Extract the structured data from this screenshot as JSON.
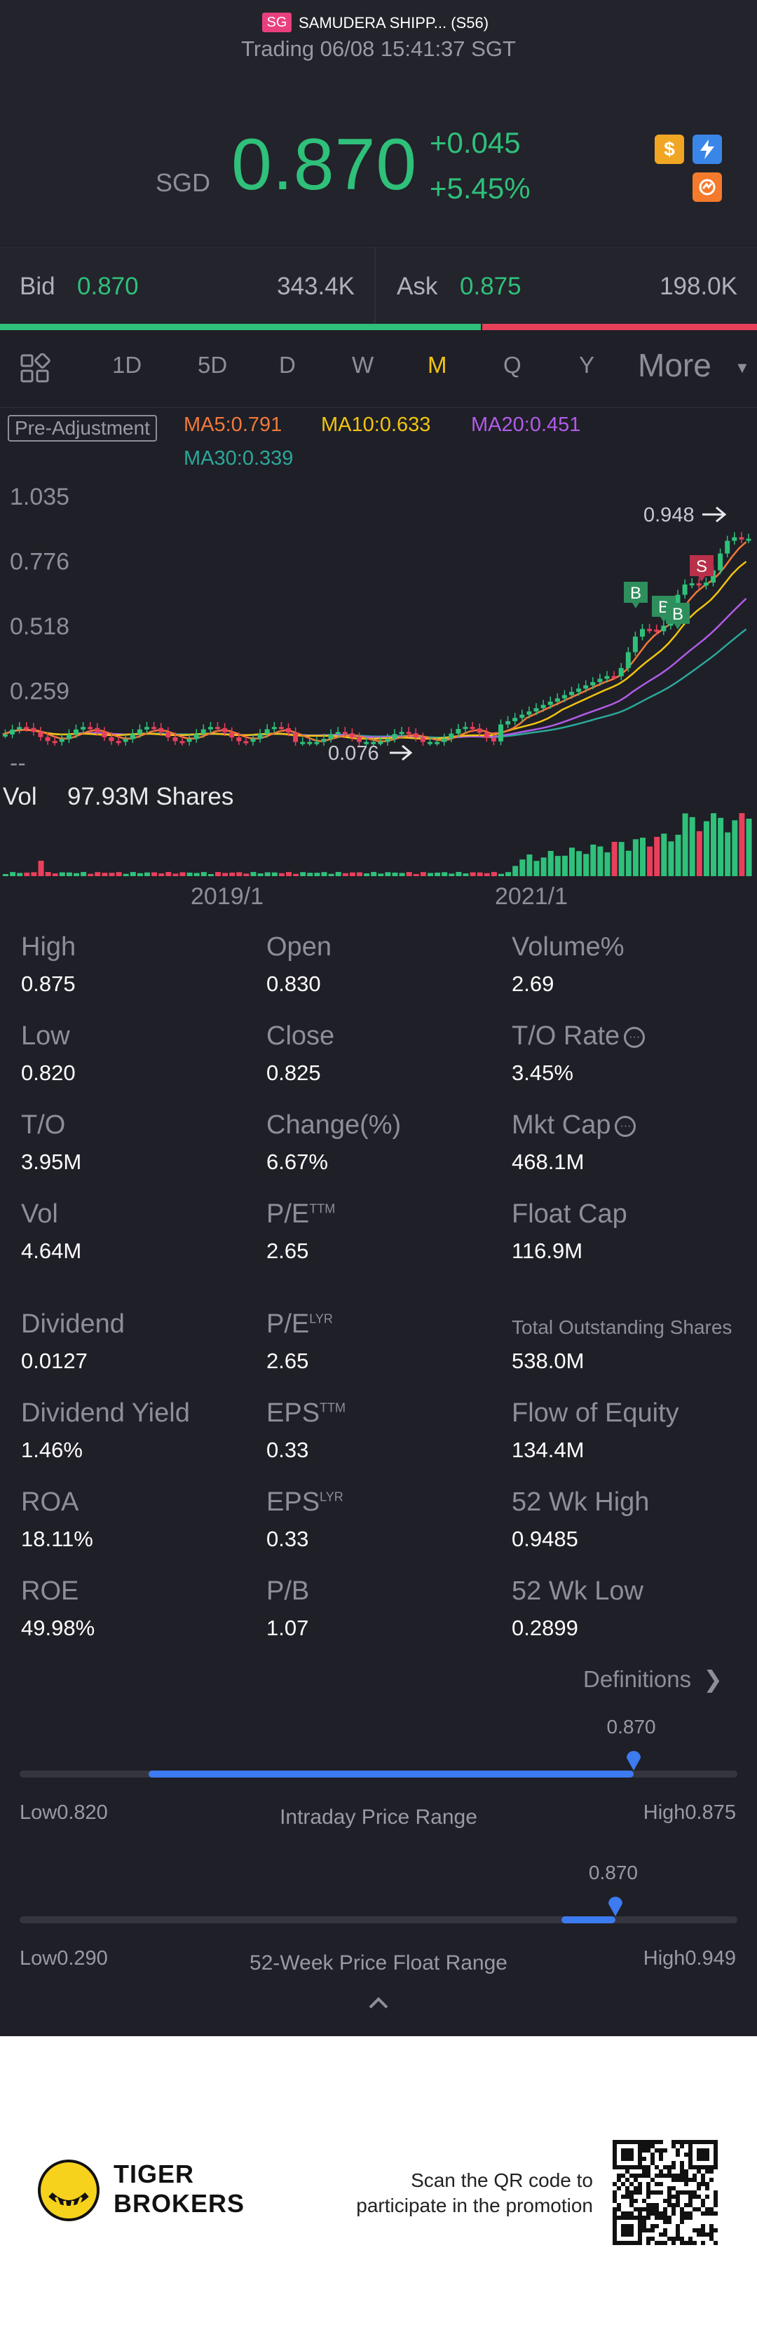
{
  "header": {
    "market_badge": "SG",
    "stock_name": "SAMUDERA SHIPP... (S56)",
    "trading_status": "Trading 06/08 15:41:37 SGT",
    "currency": "SGD",
    "price": "0.870",
    "change": "+0.045",
    "change_pct": "+5.45%",
    "icons": [
      "dollar-icon",
      "flash-icon",
      "share-icon"
    ]
  },
  "bid_ask": {
    "bid_label": "Bid",
    "bid_price": "0.870",
    "bid_volume": "343.4K",
    "ask_label": "Ask",
    "ask_price": "0.875",
    "ask_volume": "198.0K",
    "bid_ratio": 0.635
  },
  "tabs": {
    "items": [
      "1D",
      "5D",
      "D",
      "W",
      "M",
      "Q",
      "Y"
    ],
    "active": "M",
    "more_label": "More"
  },
  "chart": {
    "adjust_label": "Pre-Adjustment",
    "ma5": "MA5:0.791",
    "ma10": "MA10:0.633",
    "ma20": "MA20:0.451",
    "ma30": "MA30:0.339",
    "high_marker": "0.948",
    "low_marker": "0.076",
    "vol_label": "Vol",
    "vol_value": "97.93M Shares",
    "colors": {
      "up": "#2fc07a",
      "down": "#e8405b",
      "ma5": "#f07a3a",
      "ma10": "#f1c40f",
      "ma20": "#b05ce8",
      "ma30": "#2aa89a"
    }
  },
  "chart_data": {
    "type": "bar",
    "title": "",
    "y_ticks": [
      "1.035",
      "0.776",
      "0.518",
      "0.259",
      "--"
    ],
    "ylim": [
      0,
      1.035
    ],
    "x_ticks": [
      "2019/1",
      "2021/1"
    ],
    "volume_label": "Vol 97.93M Shares",
    "markers": [
      {
        "label": "B",
        "type": "buy"
      },
      {
        "label": "B",
        "type": "buy"
      },
      {
        "label": "B",
        "type": "buy"
      },
      {
        "label": "S",
        "type": "sell"
      }
    ],
    "price_high": 0.948,
    "price_low": 0.076
  },
  "stats": [
    {
      "label": "High",
      "value": "0.875"
    },
    {
      "label": "Open",
      "value": "0.830"
    },
    {
      "label": "Volume%",
      "value": "2.69"
    },
    {
      "label": "Low",
      "value": "0.820"
    },
    {
      "label": "Close",
      "value": "0.825"
    },
    {
      "label": "T/O Rate",
      "value": "3.45%",
      "info": true
    },
    {
      "label": "T/O",
      "value": "3.95M"
    },
    {
      "label": "Change(%)",
      "value": "6.67%"
    },
    {
      "label": "Mkt Cap",
      "value": "468.1M",
      "info": true
    },
    {
      "label": "Vol",
      "value": "4.64M"
    },
    {
      "label": "P/E",
      "sup": "TTM",
      "value": "2.65"
    },
    {
      "label": "Float Cap",
      "value": "116.9M"
    },
    {
      "label": "Dividend",
      "value": "0.0127"
    },
    {
      "label": "P/E",
      "sup": "LYR",
      "value": "2.65"
    },
    {
      "label": "Total Outstanding Shares",
      "value": "538.0M",
      "small": true
    },
    {
      "label": "Dividend Yield",
      "value": "1.46%"
    },
    {
      "label": "EPS",
      "sup": "TTM",
      "value": "0.33"
    },
    {
      "label": "Flow of Equity",
      "value": "134.4M"
    },
    {
      "label": "ROA",
      "value": "18.11%"
    },
    {
      "label": "EPS",
      "sup": "LYR",
      "value": "0.33"
    },
    {
      "label": "52 Wk High",
      "value": "0.9485"
    },
    {
      "label": "ROE",
      "value": "49.98%"
    },
    {
      "label": "P/B",
      "value": "1.07"
    },
    {
      "label": "52 Wk Low",
      "value": "0.2899"
    }
  ],
  "definitions_label": "Definitions",
  "intraday_range": {
    "title": "Intraday Price Range",
    "low_label": "Low",
    "low": "0.820",
    "high_label": "High",
    "high": "0.875",
    "current": "0.870",
    "fill_start": 0.18,
    "fill_end": 0.855,
    "marker": 0.855
  },
  "week52_range": {
    "title": "52-Week Price Float Range",
    "low_label": "Low",
    "low": "0.290",
    "high_label": "High",
    "high": "0.949",
    "current": "0.870",
    "fill_start": 0.755,
    "fill_end": 0.83,
    "marker": 0.83
  },
  "footer": {
    "brand_line1": "TIGER",
    "brand_line2": "BROKERS",
    "promo_line1": "Scan the QR code to",
    "promo_line2": "participate in the promotion"
  }
}
